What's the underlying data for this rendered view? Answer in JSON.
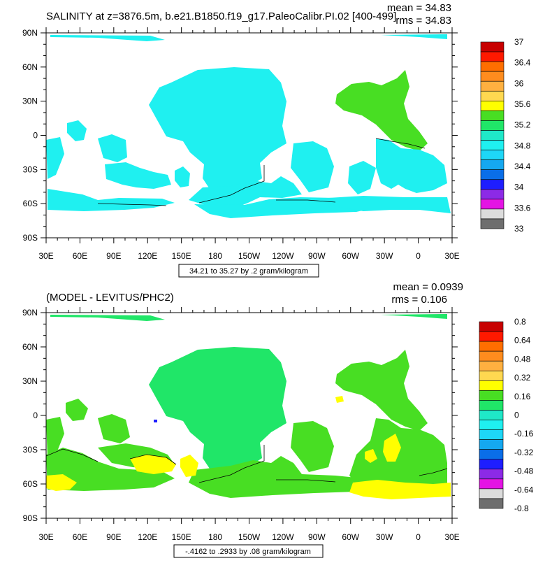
{
  "panels": [
    {
      "title": "SALINITY at z=3876.5m, b.e21.B1850.f19_g17.PaleoCalibr.PI.02 [400-499]",
      "stats": {
        "mean": "mean = 34.83",
        "rms": "rms = 34.83"
      },
      "info": "34.21 to 35.27 by .2 gram/kilogram",
      "colorbar": {
        "labels": [
          "37",
          "36.4",
          "36",
          "35.6",
          "35.2",
          "34.8",
          "34.4",
          "34",
          "33.6",
          "33"
        ],
        "colors": [
          "#c80000",
          "#ff1900",
          "#ff6e00",
          "#ff8c1e",
          "#ffb040",
          "#ffd850",
          "#ffff00",
          "#48de23",
          "#20e668",
          "#1fe8c8",
          "#1ff0f0",
          "#1ed7f7",
          "#15a8f0",
          "#0a6ee8",
          "#1e1eff",
          "#8c2ae6",
          "#e414e4",
          "#dcdcdc",
          "#6e6e6e"
        ]
      },
      "map_colors": {
        "ocean_main": "#1ff0f0",
        "ocean_high": "#48de23"
      }
    },
    {
      "title": "(MODEL - LEVITUS/PHC2)",
      "stats": {
        "mean": "mean = 0.0939",
        "rms": "rms = 0.106"
      },
      "info": "-.4162 to .2933 by .08 gram/kilogram",
      "colorbar": {
        "labels": [
          "0.8",
          "0.64",
          "0.48",
          "0.32",
          "0.16",
          "0",
          "-0.16",
          "-0.32",
          "-0.48",
          "-0.64",
          "-0.8"
        ],
        "colors": [
          "#c80000",
          "#ff1900",
          "#ff6e00",
          "#ff8c1e",
          "#ffb040",
          "#ffd850",
          "#ffff00",
          "#48de23",
          "#20e668",
          "#1fe8c8",
          "#1ff0f0",
          "#1ed7f7",
          "#15a8f0",
          "#0a6ee8",
          "#1e1eff",
          "#8c2ae6",
          "#e414e4",
          "#dcdcdc",
          "#6e6e6e"
        ]
      },
      "map_colors": {
        "ocean_main": "#20e668",
        "ocean_warm": "#48de23",
        "ocean_pos": "#ffff00"
      }
    }
  ],
  "axes": {
    "lat_labels": [
      "90N",
      "60N",
      "30N",
      "0",
      "30S",
      "60S",
      "90S"
    ],
    "lon_labels": [
      "30E",
      "60E",
      "90E",
      "120E",
      "150E",
      "180",
      "150W",
      "120W",
      "90W",
      "60W",
      "30W",
      "0",
      "30E"
    ]
  }
}
